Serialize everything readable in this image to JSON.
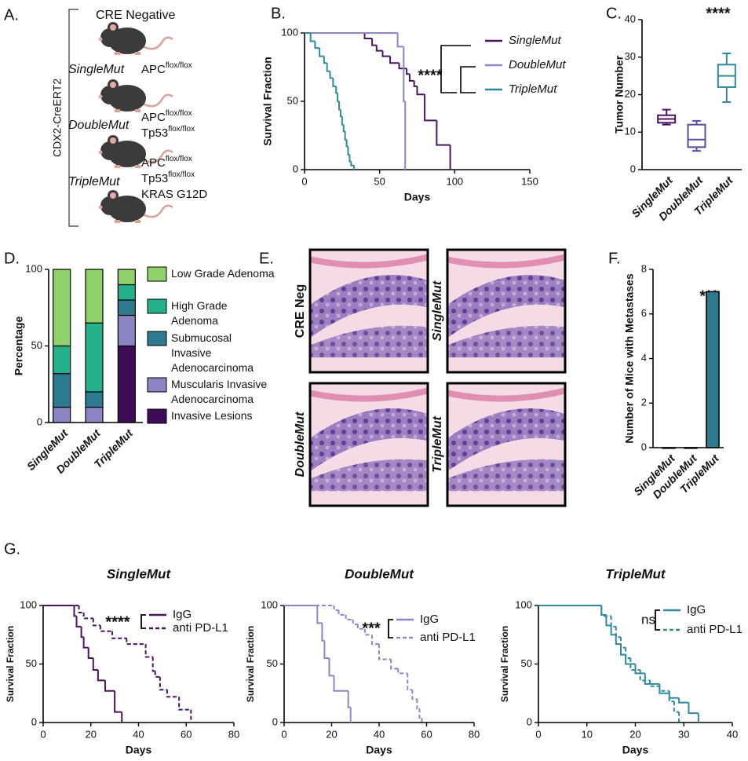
{
  "panel_a": {
    "label": "A.",
    "side_label": "CDX2-CreERT2",
    "groups": [
      {
        "name": "CRE Negative"
      },
      {
        "name": "SingleMut",
        "genes": [
          {
            "gene": "APC",
            "allele": "flox/flox"
          }
        ]
      },
      {
        "name": "DoubleMut",
        "genes": [
          {
            "gene": "APC",
            "allele": "flox/flox"
          },
          {
            "gene": "Tp53",
            "allele": "flox/flox"
          }
        ]
      },
      {
        "name": "TripleMut",
        "genes": [
          {
            "gene": "APC",
            "allele": "flox/flox"
          },
          {
            "gene": "Tp53",
            "allele": "flox/flox"
          },
          {
            "gene": "KRAS G12D"
          }
        ]
      }
    ]
  },
  "panel_e": {
    "label": "E.",
    "images": [
      "CRE Neg",
      "SingleMut",
      "DoubleMut",
      "TripleMut"
    ]
  },
  "chart_data": [
    {
      "type": "survival",
      "panel_label": "B.",
      "xlabel": "Days",
      "ylabel": "Survival Fraction",
      "xlim": [
        0,
        150
      ],
      "xticks": [
        0,
        50,
        100,
        150
      ],
      "ylim": [
        0,
        100
      ],
      "yticks": [
        0,
        50,
        100
      ],
      "annotation": "****",
      "series": [
        {
          "name": "SingleMut",
          "color": "#4b1461",
          "x": [
            0,
            40,
            45,
            48,
            52,
            57,
            63,
            68,
            70,
            73,
            75,
            80,
            88,
            97
          ],
          "values": [
            100,
            96,
            91,
            87,
            83,
            78,
            74,
            70,
            65,
            61,
            55,
            36,
            18,
            0
          ]
        },
        {
          "name": "DoubleMut",
          "color": "#8c86c9",
          "x": [
            0,
            62,
            66,
            67
          ],
          "values": [
            100,
            90,
            50,
            0
          ]
        },
        {
          "name": "TripleMut",
          "color": "#2e8a9c",
          "x": [
            0,
            4,
            7,
            10,
            13,
            15,
            17,
            19,
            21,
            22,
            23,
            24,
            25,
            26,
            27,
            28,
            29,
            30,
            31,
            33
          ],
          "values": [
            100,
            94,
            89,
            83,
            78,
            72,
            67,
            61,
            56,
            50,
            44,
            39,
            33,
            28,
            22,
            17,
            11,
            6,
            3,
            0
          ]
        }
      ]
    },
    {
      "type": "box",
      "panel_label": "C.",
      "ylabel": "Tumor Number",
      "categories": [
        "SingleMut",
        "DoubleMut",
        "TripleMut"
      ],
      "colors": [
        "#4b1461",
        "#5c4a9c",
        "#2e8a9c"
      ],
      "stats": [
        [
          12,
          12.5,
          13.5,
          14.5,
          16
        ],
        [
          5,
          6,
          8,
          12,
          13
        ],
        [
          18,
          22,
          25,
          28,
          31
        ]
      ],
      "ylim": [
        0,
        40
      ],
      "yticks": [
        0,
        10,
        20,
        30,
        40
      ],
      "annotation": "****"
    },
    {
      "type": "stacked_bar",
      "panel_label": "D.",
      "ylabel": "Percentage",
      "categories": [
        "SingleMut",
        "DoubleMut",
        "TripleMut"
      ],
      "ylim": [
        0,
        100
      ],
      "yticks": [
        0,
        50,
        100
      ],
      "series": [
        {
          "name": "Invasive Lesions",
          "color": "#3f0c57",
          "values": [
            0,
            0,
            50
          ]
        },
        {
          "name": "Muscularis Invasive Adenocarcinoma",
          "color": "#8a86c4",
          "values": [
            10,
            10,
            20
          ]
        },
        {
          "name": "Submucosal Invasive Adenocarcinoma",
          "color": "#2b7a8f",
          "values": [
            22,
            10,
            10
          ]
        },
        {
          "name": "High Grade Adenoma",
          "color": "#23b08b",
          "values": [
            18,
            45,
            10
          ]
        },
        {
          "name": "Low Grade Adenoma",
          "color": "#8fd16a",
          "values": [
            50,
            35,
            10
          ]
        }
      ]
    },
    {
      "type": "bar",
      "panel_label": "F.",
      "ylabel": "Number of Mice with Metastases",
      "categories": [
        "SingleMut",
        "DoubleMut",
        "TripleMut"
      ],
      "values": [
        0,
        0,
        7
      ],
      "color": "#2b7a8f",
      "ylim": [
        0,
        8
      ],
      "yticks": [
        0,
        2,
        4,
        6,
        8
      ],
      "annotation": "***"
    },
    {
      "type": "survival",
      "panel_label": "G.",
      "title": "SingleMut",
      "xlabel": "Days",
      "ylabel": "Survival Fraction",
      "xlim": [
        0,
        80
      ],
      "xticks": [
        0,
        20,
        40,
        60,
        80
      ],
      "ylim": [
        0,
        100
      ],
      "yticks": [
        0,
        50,
        100
      ],
      "annotation": "****",
      "series": [
        {
          "name": "IgG",
          "color": "#4b1461",
          "x": [
            0,
            13,
            14,
            16,
            17,
            19,
            21,
            23,
            26,
            30,
            33
          ],
          "values": [
            100,
            91,
            82,
            73,
            64,
            55,
            45,
            36,
            27,
            9,
            0
          ]
        },
        {
          "name": "anti PD-L1",
          "color": "#4b1461",
          "dash": true,
          "x": [
            0,
            15,
            17,
            21,
            24,
            29,
            35,
            43,
            46,
            47,
            49,
            52,
            57,
            62
          ],
          "values": [
            100,
            94,
            89,
            83,
            78,
            72,
            67,
            56,
            44,
            39,
            28,
            22,
            11,
            0
          ]
        }
      ]
    },
    {
      "type": "survival",
      "title": "DoubleMut",
      "xlabel": "Days",
      "ylabel": "Survival Fraction",
      "xlim": [
        0,
        80
      ],
      "xticks": [
        0,
        20,
        40,
        60,
        80
      ],
      "ylim": [
        0,
        100
      ],
      "yticks": [
        0,
        50,
        100
      ],
      "annotation": "***",
      "series": [
        {
          "name": "IgG",
          "color": "#8c86c9",
          "x": [
            0,
            14,
            16,
            17,
            19,
            21,
            27,
            28
          ],
          "values": [
            100,
            85,
            70,
            55,
            40,
            27,
            13,
            0
          ]
        },
        {
          "name": "anti PD-L1",
          "color": "#8c86c9",
          "dash": true,
          "x": [
            0,
            21,
            23,
            26,
            29,
            31,
            34,
            37,
            40,
            45,
            48,
            52,
            54,
            56,
            57,
            58
          ],
          "values": [
            100,
            96,
            92,
            88,
            84,
            80,
            75,
            67,
            54,
            46,
            42,
            28,
            20,
            12,
            4,
            0
          ]
        }
      ]
    },
    {
      "type": "survival",
      "title": "TripleMut",
      "xlabel": "Days",
      "ylabel": "Survival Fraction",
      "xlim": [
        0,
        40
      ],
      "xticks": [
        0,
        10,
        20,
        30,
        40
      ],
      "ylim": [
        0,
        100
      ],
      "yticks": [
        0,
        50,
        100
      ],
      "annotation": "ns",
      "series": [
        {
          "name": "IgG",
          "color": "#2e8a9c",
          "x": [
            0,
            13,
            14,
            15,
            16,
            17,
            18,
            20,
            22,
            25,
            27,
            29,
            31,
            33
          ],
          "values": [
            100,
            92,
            83,
            75,
            67,
            58,
            50,
            42,
            33,
            25,
            21,
            17,
            8,
            0
          ]
        },
        {
          "name": "anti PD-L1",
          "color": "#2e8a9c",
          "dash": true,
          "x": [
            0,
            13,
            15,
            16,
            17,
            18,
            19,
            21,
            23,
            25,
            27,
            28,
            29
          ],
          "values": [
            100,
            91,
            82,
            73,
            64,
            55,
            45,
            36,
            31,
            27,
            18,
            9,
            0
          ]
        }
      ]
    }
  ]
}
